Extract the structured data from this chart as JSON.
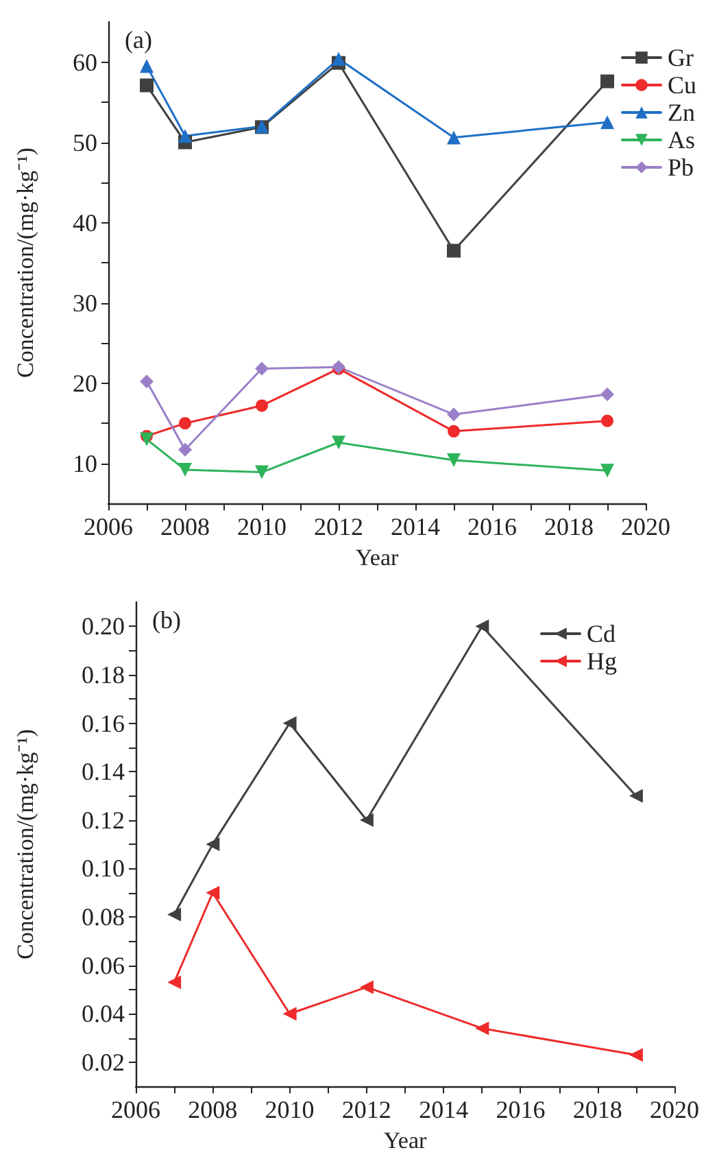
{
  "chart_data": [
    {
      "type": "line",
      "annotations": [
        "(a)"
      ],
      "xlabel": "Year",
      "ylabel": "Concentration/(mg·kg⁻¹)",
      "x": [
        2007,
        2008,
        2010,
        2012,
        2015,
        2019
      ],
      "series": [
        {
          "name": "Gr",
          "color": "#404040",
          "marker": "square",
          "values": [
            57.1,
            50.0,
            51.9,
            59.9,
            36.5,
            57.6
          ]
        },
        {
          "name": "Cu",
          "color": "#ee2a2a",
          "marker": "circle",
          "values": [
            13.4,
            15.0,
            17.2,
            21.8,
            14.0,
            15.3
          ]
        },
        {
          "name": "Zn",
          "color": "#1f6fc5",
          "marker": "triangle",
          "values": [
            59.5,
            50.8,
            52.0,
            60.4,
            50.6,
            52.5
          ]
        },
        {
          "name": "As",
          "color": "#2db35a",
          "marker": "triangle-down",
          "values": [
            13.0,
            9.2,
            8.9,
            12.6,
            10.4,
            9.1
          ]
        },
        {
          "name": "Pb",
          "color": "#9a7fc8",
          "marker": "diamond",
          "values": [
            20.2,
            11.7,
            21.8,
            22.0,
            16.1,
            18.6
          ]
        }
      ],
      "xlim": [
        2006,
        2020
      ],
      "xticks": [
        2006,
        {
          "value": 2007,
          "label": null
        },
        2008,
        {
          "value": 2009,
          "label": null
        },
        2010,
        {
          "value": 2011,
          "label": null
        },
        2012,
        {
          "value": 2013,
          "label": null
        },
        2014,
        {
          "value": 2015,
          "label": null
        },
        2016,
        {
          "value": 2017,
          "label": null
        },
        2018,
        {
          "value": 2019,
          "label": null
        },
        2020
      ],
      "ylim": [
        5,
        65
      ],
      "yticks": [
        10,
        {
          "value": 15,
          "label": null
        },
        20,
        {
          "value": 25,
          "label": null
        },
        30,
        {
          "value": 35,
          "label": null
        },
        40,
        {
          "value": 45,
          "label": null
        },
        50,
        {
          "value": 55,
          "label": null
        },
        60
      ],
      "grid": false,
      "legend": "top right",
      "line_style": "solid"
    },
    {
      "type": "line",
      "annotations": [
        "(b)"
      ],
      "xlabel": "Year",
      "ylabel": "Concentration/(mg·kg⁻¹)",
      "x": [
        2007,
        2008,
        2010,
        2012,
        2015,
        2019
      ],
      "series": [
        {
          "name": "Cd",
          "color": "#404040",
          "marker": "triangle-left",
          "values": [
            0.081,
            0.11,
            0.16,
            0.12,
            0.2,
            0.13
          ]
        },
        {
          "name": "Hg",
          "color": "#ee2a2a",
          "marker": "triangle-left",
          "values": [
            0.053,
            0.09,
            0.04,
            0.051,
            0.034,
            0.023
          ]
        }
      ],
      "xlim": [
        2006,
        2020
      ],
      "xticks": [
        2006,
        {
          "value": 2007,
          "label": null
        },
        2008,
        {
          "value": 2009,
          "label": null
        },
        2010,
        {
          "value": 2011,
          "label": null
        },
        2012,
        {
          "value": 2013,
          "label": null
        },
        2014,
        {
          "value": 2015,
          "label": null
        },
        2016,
        {
          "value": 2017,
          "label": null
        },
        2018,
        {
          "value": 2019,
          "label": null
        },
        2020
      ],
      "ylim": [
        0.01,
        0.21
      ],
      "yticks": [
        0.02,
        {
          "value": 0.03,
          "label": null
        },
        0.04,
        {
          "value": 0.05,
          "label": null
        },
        0.06,
        {
          "value": 0.07,
          "label": null
        },
        0.08,
        {
          "value": 0.09,
          "label": null
        },
        {
          "value": 0.1,
          "label": "0.10"
        },
        {
          "value": 0.11,
          "label": null
        },
        0.12,
        {
          "value": 0.13,
          "label": null
        },
        0.14,
        {
          "value": 0.15,
          "label": null
        },
        0.16,
        {
          "value": 0.17,
          "label": null
        },
        0.18,
        {
          "value": 0.19,
          "label": null
        },
        {
          "value": 0.2,
          "label": "0.20"
        }
      ],
      "grid": false,
      "legend": "top right",
      "line_style": "solid"
    }
  ]
}
